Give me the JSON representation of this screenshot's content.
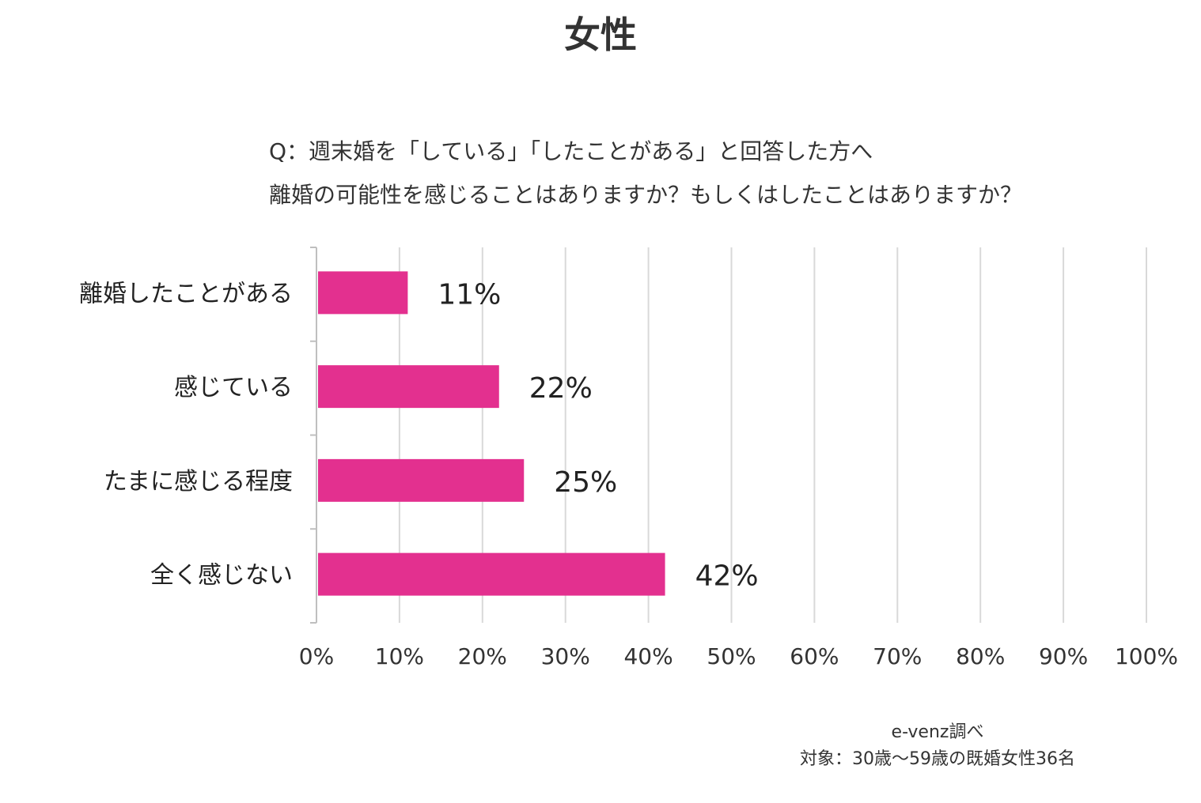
{
  "page": {
    "title": "女性",
    "question_line1": "Q：週末婚を「している」「したことがある」と回答した方へ",
    "question_line2": "離婚の可能性を感じることはありますか？もしくはしたことはありますか？",
    "source": "e-venz調べ",
    "target": "対象：30歳〜59歳の既婚女性36名"
  },
  "colors": {
    "bar": "#e3308f",
    "grid": "#d9d9d9",
    "axis": "#bfbfbf",
    "text": "#222222"
  },
  "chart_data": {
    "type": "bar",
    "orientation": "horizontal",
    "categories": [
      "離婚したことがある",
      "感じている",
      "たまに感じる程度",
      "全く感じない"
    ],
    "values": [
      11,
      22,
      25,
      42
    ],
    "value_labels": [
      "11%",
      "22%",
      "25%",
      "42%"
    ],
    "xlim": [
      0,
      100
    ],
    "x_ticks": [
      "0%",
      "10%",
      "20%",
      "30%",
      "40%",
      "50%",
      "60%",
      "70%",
      "80%",
      "90%",
      "100%"
    ],
    "grid": true,
    "legend": "none"
  }
}
